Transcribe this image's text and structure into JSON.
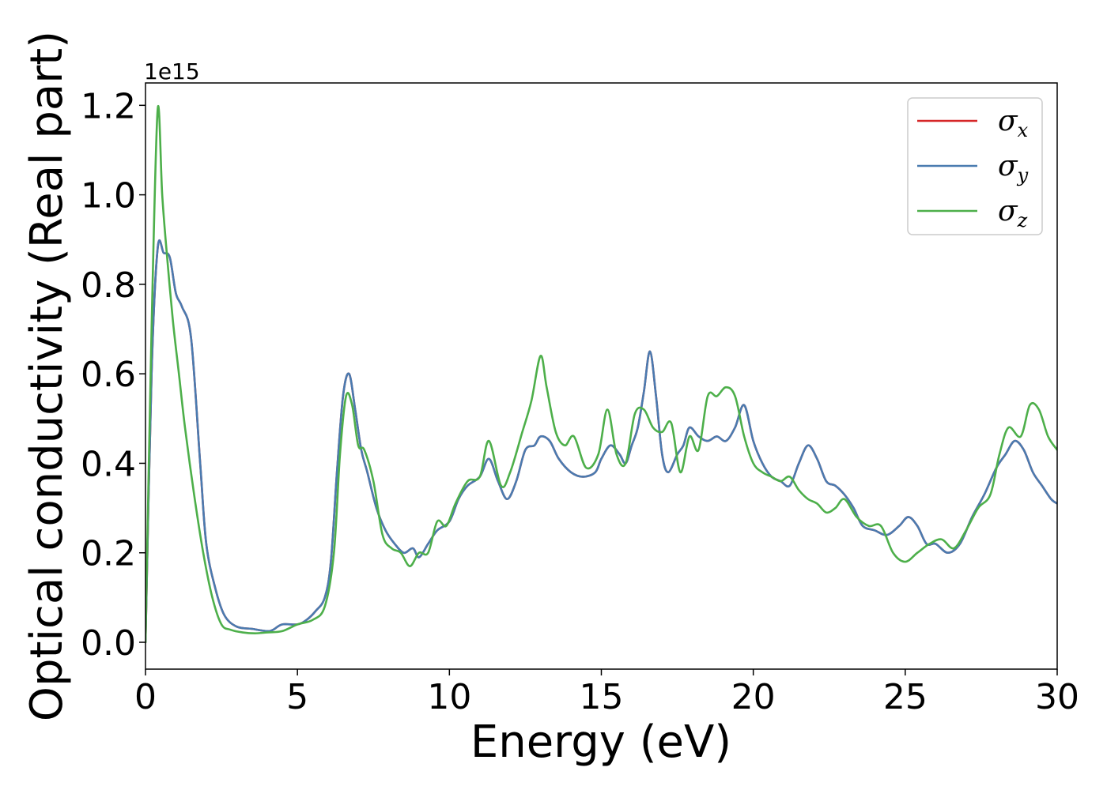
{
  "chart_data": {
    "type": "line",
    "title": "",
    "xlabel": "Energy (eV)",
    "ylabel": "Optical conductivity (Real part)",
    "y_offset_label": "1e15",
    "xlim": [
      0,
      30
    ],
    "ylim": [
      -0.06,
      1.25
    ],
    "xticks": [
      0,
      5,
      10,
      15,
      20,
      25,
      30
    ],
    "xtick_labels": [
      "0",
      "5",
      "10",
      "15",
      "20",
      "25",
      "30"
    ],
    "yticks": [
      0.0,
      0.2,
      0.4,
      0.6,
      0.8,
      1.0,
      1.2
    ],
    "ytick_labels": [
      "0.0",
      "0.2",
      "0.4",
      "0.6",
      "0.8",
      "1.0",
      "1.2"
    ],
    "grid": false,
    "legend_position": "top-right",
    "series": [
      {
        "name": "σx",
        "symbol": "σ",
        "sub": "x",
        "color": "#d62728",
        "x": [
          0,
          0.2,
          0.4,
          0.6,
          0.8,
          1.0,
          1.2,
          1.5,
          1.8,
          2.0,
          2.3,
          2.6,
          3.0,
          3.5,
          4.0,
          4.2,
          4.5,
          5.0,
          5.3,
          5.6,
          5.9,
          6.1,
          6.3,
          6.5,
          6.7,
          6.9,
          7.1,
          7.3,
          7.6,
          7.9,
          8.2,
          8.5,
          8.8,
          9.0,
          9.3,
          9.6,
          10.0,
          10.3,
          10.6,
          11.0,
          11.3,
          11.6,
          11.9,
          12.2,
          12.5,
          12.8,
          13.0,
          13.3,
          13.6,
          14.0,
          14.4,
          14.8,
          15.0,
          15.3,
          15.6,
          15.8,
          16.0,
          16.2,
          16.4,
          16.6,
          16.8,
          17.0,
          17.2,
          17.5,
          17.7,
          17.9,
          18.2,
          18.5,
          18.8,
          19.1,
          19.4,
          19.7,
          20.0,
          20.3,
          20.6,
          20.9,
          21.2,
          21.5,
          21.8,
          22.1,
          22.4,
          22.7,
          23.0,
          23.3,
          23.6,
          24.0,
          24.4,
          24.8,
          25.1,
          25.4,
          25.7,
          26.0,
          26.4,
          26.8,
          27.2,
          27.6,
          28.0,
          28.3,
          28.6,
          28.9,
          29.2,
          29.5,
          29.8,
          30.0
        ],
        "y": [
          0.0,
          0.6,
          0.88,
          0.87,
          0.86,
          0.78,
          0.75,
          0.68,
          0.4,
          0.22,
          0.12,
          0.06,
          0.035,
          0.03,
          0.025,
          0.028,
          0.04,
          0.04,
          0.05,
          0.07,
          0.1,
          0.18,
          0.38,
          0.55,
          0.6,
          0.52,
          0.43,
          0.38,
          0.3,
          0.25,
          0.22,
          0.2,
          0.21,
          0.19,
          0.22,
          0.25,
          0.27,
          0.32,
          0.35,
          0.37,
          0.41,
          0.36,
          0.32,
          0.36,
          0.43,
          0.44,
          0.46,
          0.45,
          0.41,
          0.38,
          0.37,
          0.38,
          0.41,
          0.44,
          0.42,
          0.4,
          0.44,
          0.48,
          0.56,
          0.65,
          0.55,
          0.42,
          0.38,
          0.42,
          0.44,
          0.48,
          0.46,
          0.45,
          0.46,
          0.45,
          0.48,
          0.53,
          0.45,
          0.4,
          0.37,
          0.36,
          0.35,
          0.4,
          0.44,
          0.41,
          0.36,
          0.35,
          0.33,
          0.3,
          0.26,
          0.25,
          0.24,
          0.26,
          0.28,
          0.26,
          0.22,
          0.22,
          0.2,
          0.22,
          0.28,
          0.33,
          0.39,
          0.42,
          0.45,
          0.43,
          0.38,
          0.35,
          0.32,
          0.31
        ]
      },
      {
        "name": "σy",
        "symbol": "σ",
        "sub": "y",
        "color": "#4a7bb0",
        "x": [
          0,
          0.2,
          0.4,
          0.6,
          0.8,
          1.0,
          1.2,
          1.5,
          1.8,
          2.0,
          2.3,
          2.6,
          3.0,
          3.5,
          4.0,
          4.2,
          4.5,
          5.0,
          5.3,
          5.6,
          5.9,
          6.1,
          6.3,
          6.5,
          6.7,
          6.9,
          7.1,
          7.3,
          7.6,
          7.9,
          8.2,
          8.5,
          8.8,
          9.0,
          9.3,
          9.6,
          10.0,
          10.3,
          10.6,
          11.0,
          11.3,
          11.6,
          11.9,
          12.2,
          12.5,
          12.8,
          13.0,
          13.3,
          13.6,
          14.0,
          14.4,
          14.8,
          15.0,
          15.3,
          15.6,
          15.8,
          16.0,
          16.2,
          16.4,
          16.6,
          16.8,
          17.0,
          17.2,
          17.5,
          17.7,
          17.9,
          18.2,
          18.5,
          18.8,
          19.1,
          19.4,
          19.7,
          20.0,
          20.3,
          20.6,
          20.9,
          21.2,
          21.5,
          21.8,
          22.1,
          22.4,
          22.7,
          23.0,
          23.3,
          23.6,
          24.0,
          24.4,
          24.8,
          25.1,
          25.4,
          25.7,
          26.0,
          26.4,
          26.8,
          27.2,
          27.6,
          28.0,
          28.3,
          28.6,
          28.9,
          29.2,
          29.5,
          29.8,
          30.0
        ],
        "y": [
          0.0,
          0.6,
          0.88,
          0.87,
          0.86,
          0.78,
          0.75,
          0.68,
          0.4,
          0.22,
          0.12,
          0.06,
          0.035,
          0.03,
          0.025,
          0.028,
          0.04,
          0.04,
          0.05,
          0.07,
          0.1,
          0.18,
          0.38,
          0.55,
          0.6,
          0.52,
          0.43,
          0.38,
          0.3,
          0.25,
          0.22,
          0.2,
          0.21,
          0.19,
          0.22,
          0.25,
          0.27,
          0.32,
          0.35,
          0.37,
          0.41,
          0.36,
          0.32,
          0.36,
          0.43,
          0.44,
          0.46,
          0.45,
          0.41,
          0.38,
          0.37,
          0.38,
          0.41,
          0.44,
          0.42,
          0.4,
          0.44,
          0.48,
          0.56,
          0.65,
          0.55,
          0.42,
          0.38,
          0.42,
          0.44,
          0.48,
          0.46,
          0.45,
          0.46,
          0.45,
          0.48,
          0.53,
          0.45,
          0.4,
          0.37,
          0.36,
          0.35,
          0.4,
          0.44,
          0.41,
          0.36,
          0.35,
          0.33,
          0.3,
          0.26,
          0.25,
          0.24,
          0.26,
          0.28,
          0.26,
          0.22,
          0.22,
          0.2,
          0.22,
          0.28,
          0.33,
          0.39,
          0.42,
          0.45,
          0.43,
          0.38,
          0.35,
          0.32,
          0.31
        ]
      },
      {
        "name": "σz",
        "symbol": "σ",
        "sub": "z",
        "color": "#4daf4a",
        "x": [
          0,
          0.2,
          0.4,
          0.55,
          0.7,
          0.9,
          1.1,
          1.3,
          1.6,
          1.9,
          2.2,
          2.5,
          2.8,
          3.2,
          3.6,
          4.0,
          4.5,
          5.0,
          5.5,
          5.9,
          6.2,
          6.4,
          6.6,
          6.8,
          7.0,
          7.2,
          7.5,
          7.8,
          8.1,
          8.4,
          8.7,
          9.0,
          9.3,
          9.6,
          9.9,
          10.2,
          10.6,
          11.0,
          11.3,
          11.7,
          12.0,
          12.4,
          12.7,
          13.0,
          13.2,
          13.5,
          13.8,
          14.1,
          14.5,
          14.9,
          15.2,
          15.5,
          15.8,
          16.1,
          16.4,
          16.7,
          17.0,
          17.3,
          17.6,
          17.9,
          18.2,
          18.5,
          18.8,
          19.1,
          19.4,
          19.7,
          20.0,
          20.3,
          20.6,
          20.9,
          21.2,
          21.5,
          21.8,
          22.1,
          22.4,
          22.7,
          23.0,
          23.4,
          23.8,
          24.2,
          24.6,
          25.0,
          25.4,
          25.8,
          26.2,
          26.6,
          27.0,
          27.4,
          27.8,
          28.1,
          28.4,
          28.8,
          29.1,
          29.4,
          29.7,
          30.0
        ],
        "y": [
          0.0,
          0.7,
          1.19,
          1.0,
          0.87,
          0.72,
          0.6,
          0.48,
          0.33,
          0.2,
          0.1,
          0.04,
          0.028,
          0.022,
          0.02,
          0.022,
          0.025,
          0.04,
          0.05,
          0.08,
          0.2,
          0.42,
          0.55,
          0.53,
          0.44,
          0.43,
          0.36,
          0.24,
          0.21,
          0.2,
          0.17,
          0.2,
          0.2,
          0.27,
          0.26,
          0.31,
          0.36,
          0.37,
          0.45,
          0.35,
          0.38,
          0.47,
          0.54,
          0.64,
          0.57,
          0.47,
          0.44,
          0.46,
          0.39,
          0.42,
          0.52,
          0.42,
          0.4,
          0.51,
          0.52,
          0.48,
          0.47,
          0.49,
          0.38,
          0.46,
          0.43,
          0.55,
          0.55,
          0.57,
          0.55,
          0.46,
          0.4,
          0.38,
          0.37,
          0.36,
          0.37,
          0.34,
          0.32,
          0.31,
          0.29,
          0.3,
          0.32,
          0.28,
          0.26,
          0.26,
          0.2,
          0.18,
          0.2,
          0.22,
          0.23,
          0.21,
          0.25,
          0.3,
          0.33,
          0.42,
          0.48,
          0.46,
          0.53,
          0.52,
          0.46,
          0.43
        ]
      }
    ]
  }
}
